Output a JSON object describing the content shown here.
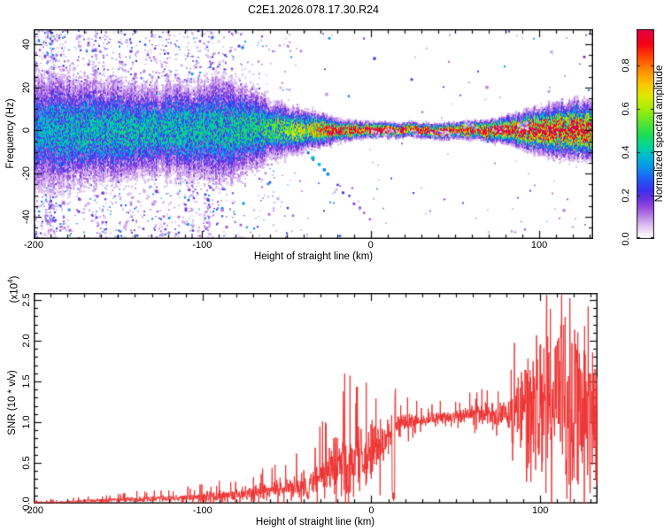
{
  "title": "C2E1.2026.078.17.30.R24",
  "panels": {
    "spectrogram": {
      "xlabel": "Height of straight line (km)",
      "ylabel": "Frequency (Hz)",
      "x_ticks": [
        {
          "v": -200,
          "label": "-200"
        },
        {
          "v": -100,
          "label": "-100"
        },
        {
          "v": 0,
          "label": "0"
        },
        {
          "v": 100,
          "label": "100"
        }
      ],
      "y_ticks": [
        {
          "v": 40,
          "label": "40"
        },
        {
          "v": 20,
          "label": "20"
        },
        {
          "v": 0,
          "label": "0"
        },
        {
          "v": -20,
          "label": "-20"
        },
        {
          "v": -40,
          "label": "-40"
        }
      ]
    },
    "colorbar": {
      "label": "Normalized spectral amplitude",
      "ticks": [
        {
          "v": 0.0,
          "label": "0.0"
        },
        {
          "v": 0.2,
          "label": "0.2"
        },
        {
          "v": 0.4,
          "label": "0.4"
        },
        {
          "v": 0.6,
          "label": "0.6"
        },
        {
          "v": 0.8,
          "label": "0.8"
        }
      ]
    },
    "snr": {
      "xlabel": "Height of straight line (km)",
      "ylabel": "SNR (10 * v/v)",
      "scale_prefix": "(x10",
      "scale_sup": "4",
      "scale_suffix": ")",
      "x_ticks": [
        {
          "v": -200,
          "label": "-200"
        },
        {
          "v": -100,
          "label": "-100"
        },
        {
          "v": 0,
          "label": "0"
        },
        {
          "v": 100,
          "label": "100"
        }
      ],
      "y_ticks": [
        {
          "v": 2.5,
          "label": "2.5"
        },
        {
          "v": 2.0,
          "label": "2.0"
        },
        {
          "v": 1.5,
          "label": "1.5"
        },
        {
          "v": 1.0,
          "label": "1.0"
        },
        {
          "v": 0.5,
          "label": "0.5"
        },
        {
          "v": 0.0,
          "label": "0.0"
        }
      ]
    }
  },
  "chart_data": [
    {
      "type": "heatmap",
      "name": "doppler-spectrogram",
      "title": "C2E1.2026.078.17.30.R24",
      "xlabel": "Height of straight line (km)",
      "ylabel": "Frequency (Hz)",
      "xlim": [
        -200,
        132
      ],
      "ylim": [
        -50.3,
        47
      ],
      "x_ticks": [
        -200,
        -100,
        0,
        100
      ],
      "x_minor_step": 10,
      "y_ticks": [
        -40,
        -20,
        0,
        20,
        40
      ],
      "y_minor_step": 5,
      "grid": false,
      "colorbar": {
        "label": "Normalized spectral amplitude",
        "ticks": [
          0.0,
          0.2,
          0.4,
          0.6,
          0.8
        ],
        "range": [
          0,
          0.965
        ],
        "position": "right"
      },
      "colormap_stops": [
        [
          0.0,
          "#ffffff"
        ],
        [
          0.025,
          "#f3e9fa"
        ],
        [
          0.06,
          "#ddc0f2"
        ],
        [
          0.1,
          "#bd86e8"
        ],
        [
          0.14,
          "#9a4fdd"
        ],
        [
          0.18,
          "#6d33e2"
        ],
        [
          0.22,
          "#3d2fee"
        ],
        [
          0.27,
          "#2257f2"
        ],
        [
          0.32,
          "#0b8cf0"
        ],
        [
          0.37,
          "#00b4d8"
        ],
        [
          0.42,
          "#00d4a0"
        ],
        [
          0.48,
          "#1edd55"
        ],
        [
          0.54,
          "#5ce62a"
        ],
        [
          0.6,
          "#a5ee08"
        ],
        [
          0.66,
          "#e0e800"
        ],
        [
          0.72,
          "#ffc000"
        ],
        [
          0.78,
          "#ff8800"
        ],
        [
          0.84,
          "#ff4400"
        ],
        [
          0.9,
          "#f50018"
        ],
        [
          0.96,
          "#e2003c"
        ],
        [
          1.0,
          "#d80052"
        ]
      ],
      "band_center_hz": 0,
      "band_profile": [
        {
          "x": -200,
          "bg": 0.95,
          "outer": 40,
          "mid": 11,
          "core": 0.3
        },
        {
          "x": -188,
          "bg": 0.8,
          "outer": 36,
          "mid": 11,
          "core": 0.33
        },
        {
          "x": -175,
          "bg": 0.6,
          "outer": 32,
          "mid": 10,
          "core": 0.34
        },
        {
          "x": -160,
          "bg": 0.5,
          "outer": 30,
          "mid": 10,
          "core": 0.34
        },
        {
          "x": -145,
          "bg": 0.45,
          "outer": 28,
          "mid": 9.5,
          "core": 0.35
        },
        {
          "x": -130,
          "bg": 0.42,
          "outer": 27,
          "mid": 9,
          "core": 0.35
        },
        {
          "x": -115,
          "bg": 0.38,
          "outer": 26,
          "mid": 9,
          "core": 0.35
        },
        {
          "x": -100,
          "bg": 0.36,
          "outer": 28,
          "mid": 9.5,
          "core": 0.35
        },
        {
          "x": -90,
          "bg": 0.33,
          "outer": 33,
          "mid": 10,
          "core": 0.35
        },
        {
          "x": -80,
          "bg": 0.26,
          "outer": 30,
          "mid": 9,
          "core": 0.36
        },
        {
          "x": -70,
          "bg": 0.18,
          "outer": 22,
          "mid": 7.5,
          "core": 0.38
        },
        {
          "x": -60,
          "bg": 0.12,
          "outer": 16,
          "mid": 6,
          "core": 0.42
        },
        {
          "x": -50,
          "bg": 0.08,
          "outer": 13,
          "mid": 5,
          "core": 0.48
        },
        {
          "x": -40,
          "bg": 0.06,
          "outer": 10,
          "mid": 4,
          "core": 0.55
        },
        {
          "x": -30,
          "bg": 0.04,
          "outer": 8,
          "mid": 3,
          "core": 0.68
        },
        {
          "x": -22,
          "bg": 0.03,
          "outer": 6.5,
          "mid": 2.2,
          "core": 0.82
        },
        {
          "x": -15,
          "bg": 0.02,
          "outer": 5,
          "mid": 1.7,
          "core": 0.92
        },
        {
          "x": -5,
          "bg": 0.015,
          "outer": 4,
          "mid": 1.4,
          "core": 0.96
        },
        {
          "x": 10,
          "bg": 0.01,
          "outer": 3.6,
          "mid": 1.3,
          "core": 0.97
        },
        {
          "x": 30,
          "bg": 0.01,
          "outer": 3.6,
          "mid": 1.3,
          "core": 0.97
        },
        {
          "x": 50,
          "bg": 0.01,
          "outer": 4,
          "mid": 1.4,
          "core": 0.96
        },
        {
          "x": 65,
          "bg": 0.01,
          "outer": 4.5,
          "mid": 1.6,
          "core": 0.95
        },
        {
          "x": 78,
          "bg": 0.012,
          "outer": 6,
          "mid": 2.2,
          "core": 0.93
        },
        {
          "x": 88,
          "bg": 0.015,
          "outer": 8.5,
          "mid": 3,
          "core": 0.9
        },
        {
          "x": 98,
          "bg": 0.02,
          "outer": 11,
          "mid": 4,
          "core": 0.87
        },
        {
          "x": 110,
          "bg": 0.025,
          "outer": 13,
          "mid": 4.8,
          "core": 0.86
        },
        {
          "x": 122,
          "bg": 0.03,
          "outer": 13.5,
          "mid": 5,
          "core": 0.86
        },
        {
          "x": 132,
          "bg": 0.03,
          "outer": 13,
          "mid": 5,
          "core": 0.86
        }
      ],
      "echo_trail": {
        "from_km_hz": [
          -40,
          -8
        ],
        "to_km_hz": [
          -1,
          -41
        ]
      },
      "description": "Doppler spectrogram: dense purple noise at far left fading rightward; broad blue/cyan band at 0 Hz narrowing to an intense red core from -20 to +90 km, re-broadening with blue/green speckle beyond +90 km; faint dotted echo trail descending from (-40 km,-8 Hz) to (-1 km,-41 Hz)."
    },
    {
      "type": "line",
      "name": "snr-profile",
      "series_color": "#ee3333",
      "xlabel": "Height of straight line (km)",
      "ylabel": "SNR (10 * v/v)",
      "y_scale_note": "(x10^4)",
      "xlim": [
        -200,
        134
      ],
      "ylim": [
        0,
        2.587
      ],
      "x_ticks": [
        -200,
        -100,
        0,
        100
      ],
      "x_minor_step": 10,
      "y_ticks": [
        0,
        0.5,
        1.0,
        1.5,
        2.0,
        2.5
      ],
      "y_minor_step": 0.1,
      "grid": false,
      "envelope": [
        {
          "x": -200,
          "m": 0.015,
          "s": 0.01
        },
        {
          "x": -180,
          "m": 0.02,
          "s": 0.015
        },
        {
          "x": -165,
          "m": 0.035,
          "s": 0.028
        },
        {
          "x": -150,
          "m": 0.045,
          "s": 0.03
        },
        {
          "x": -135,
          "m": 0.055,
          "s": 0.04
        },
        {
          "x": -120,
          "m": 0.065,
          "s": 0.045
        },
        {
          "x": -105,
          "m": 0.075,
          "s": 0.055
        },
        {
          "x": -90,
          "m": 0.095,
          "s": 0.075
        },
        {
          "x": -75,
          "m": 0.115,
          "s": 0.095
        },
        {
          "x": -62,
          "m": 0.14,
          "s": 0.11
        },
        {
          "x": -52,
          "m": 0.17,
          "s": 0.14
        },
        {
          "x": -42,
          "m": 0.21,
          "s": 0.17
        },
        {
          "x": -32,
          "m": 0.28,
          "s": 0.22
        },
        {
          "x": -24,
          "m": 0.4,
          "s": 0.33
        },
        {
          "x": -16,
          "m": 0.48,
          "s": 0.4
        },
        {
          "x": -8,
          "m": 0.55,
          "s": 0.42
        },
        {
          "x": 0,
          "m": 0.62,
          "s": 0.38
        },
        {
          "x": 8,
          "m": 0.8,
          "s": 0.28
        },
        {
          "x": 16,
          "m": 0.96,
          "s": 0.16
        },
        {
          "x": 26,
          "m": 1.02,
          "s": 0.09
        },
        {
          "x": 40,
          "m": 1.05,
          "s": 0.08
        },
        {
          "x": 54,
          "m": 1.08,
          "s": 0.1
        },
        {
          "x": 68,
          "m": 1.1,
          "s": 0.14
        },
        {
          "x": 79,
          "m": 1.08,
          "s": 0.22
        },
        {
          "x": 87,
          "m": 1.06,
          "s": 0.45
        },
        {
          "x": 94,
          "m": 1.15,
          "s": 0.85
        },
        {
          "x": 104,
          "m": 1.3,
          "s": 1.2
        },
        {
          "x": 114,
          "m": 1.28,
          "s": 1.25
        },
        {
          "x": 124,
          "m": 1.22,
          "s": 1.18
        },
        {
          "x": 134,
          "m": 1.1,
          "s": 1.0
        }
      ],
      "notches": [
        13,
        -38
      ],
      "description": "Noisy SNR trace: near zero from -200 to -150 km, slowly rising spiky noise to ~0.3 by -30 km, volatile climb through 0 km, plateau near 1.05-1.1 from +20 to +85 km, then violent oscillations spanning 0 to 2.55 from +90 to +134 km."
    }
  ]
}
